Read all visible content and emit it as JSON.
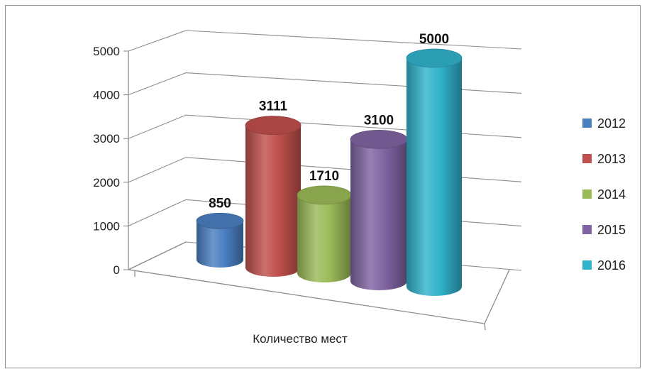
{
  "chart_data": {
    "type": "bar",
    "style": "3d-cylinder",
    "categories": [
      "Количество мест"
    ],
    "series": [
      {
        "name": "2012",
        "values": [
          850
        ],
        "color": "#4a7fc1"
      },
      {
        "name": "2013",
        "values": [
          3111
        ],
        "color": "#c0504d"
      },
      {
        "name": "2014",
        "values": [
          1710
        ],
        "color": "#9bbb59"
      },
      {
        "name": "2015",
        "values": [
          3100
        ],
        "color": "#8064a2"
      },
      {
        "name": "2016",
        "values": [
          5000
        ],
        "color": "#31b3cc"
      }
    ],
    "data_labels": [
      "850",
      "3111",
      "1710",
      "3100",
      "5000"
    ],
    "y_ticks": [
      "0",
      "1000",
      "2000",
      "3000",
      "4000",
      "5000"
    ],
    "ylim": [
      0,
      5000
    ],
    "grid": true,
    "legend": "right",
    "title": "",
    "xlabel": "",
    "ylabel": ""
  }
}
